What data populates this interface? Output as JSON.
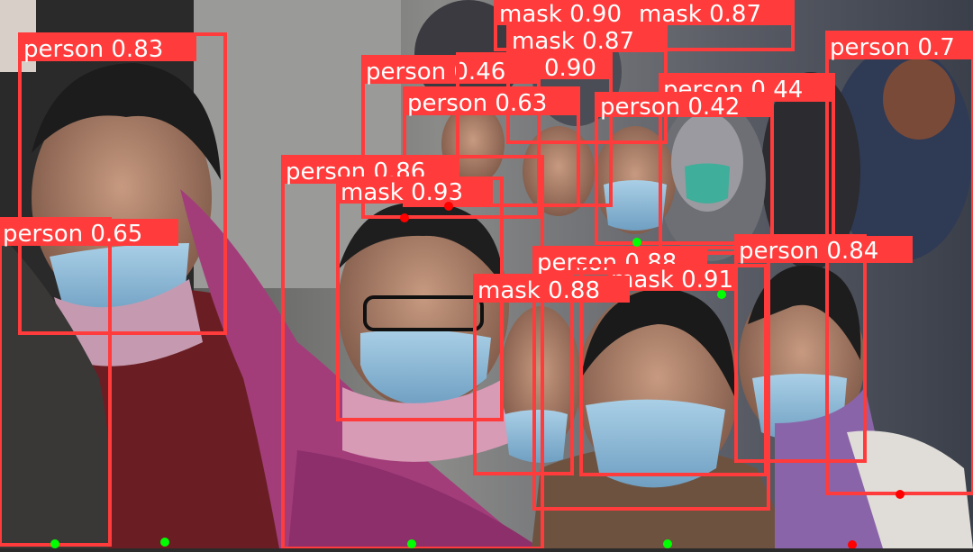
{
  "image": {
    "description_colors": {
      "box": "#ff3b3b",
      "label_text": "#ffffff",
      "anchor_red": "#ff0000",
      "anchor_green": "#00ff00"
    }
  },
  "detections": [
    {
      "label": "mask 0.90"
    },
    {
      "label": "mask 0.87"
    },
    {
      "label": "person 0.7"
    },
    {
      "label": "person 0.83"
    },
    {
      "label": "mask 0.87"
    },
    {
      "label": "person 0.46"
    },
    {
      "label": "0.90"
    },
    {
      "label": "person 0.63"
    },
    {
      "label": "person 0.44"
    },
    {
      "label": "person 0.42"
    },
    {
      "label": "person 0.86"
    },
    {
      "label": "mask 0.93"
    },
    {
      "label": "person 0.65"
    },
    {
      "label": "person 0.88"
    },
    {
      "label": "mask 0.91"
    },
    {
      "label": "person 0.84"
    },
    {
      "label": "mask 0.88"
    }
  ]
}
